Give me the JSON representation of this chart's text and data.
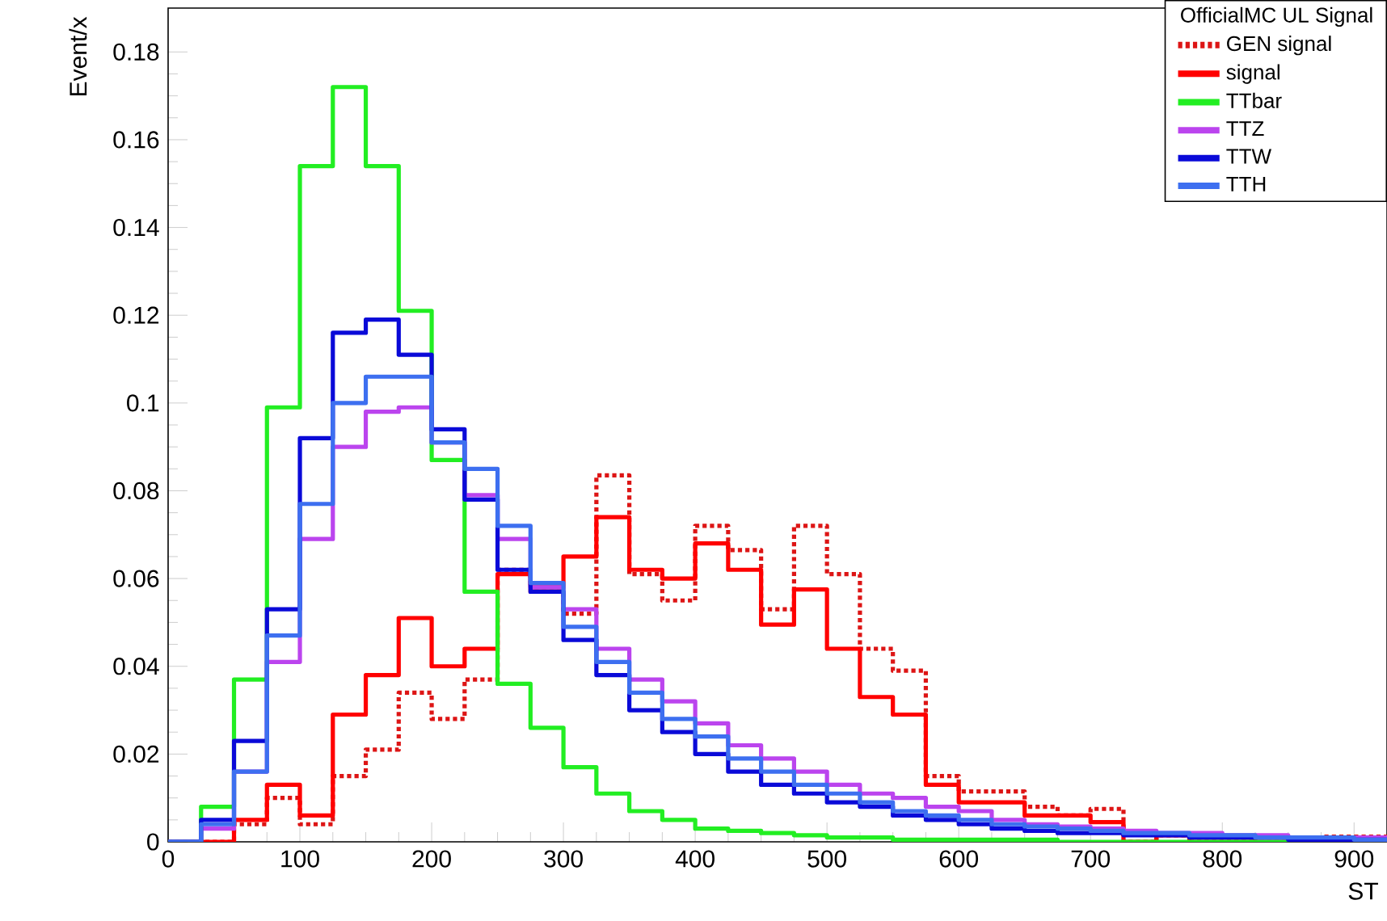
{
  "chart_data": {
    "type": "histogram",
    "xlabel": "ST",
    "ylabel": "Event/x",
    "legend_title": "OfficialMC UL Signal",
    "legend": "top right",
    "bins": [
      0,
      25,
      50,
      75,
      100,
      125,
      150,
      175,
      200,
      225,
      250,
      275,
      300,
      325,
      350,
      375,
      400,
      425,
      450,
      475,
      500,
      525,
      550,
      575,
      600,
      625,
      650,
      675,
      700,
      725,
      750,
      775,
      800,
      825,
      850,
      875,
      900,
      925
    ],
    "xlim": [
      0,
      925
    ],
    "xticks": [
      0,
      100,
      200,
      300,
      400,
      500,
      600,
      700,
      800,
      900
    ],
    "ylim": [
      0,
      0.19
    ],
    "yticks": [
      0,
      0.02,
      0.04,
      0.06,
      0.08,
      0.1,
      0.12,
      0.14,
      0.16,
      0.18
    ],
    "series": [
      {
        "name": "GEN signal",
        "color": "#dd1515",
        "line_style": "dotted",
        "values": [
          0,
          0,
          0.004,
          0.01,
          0.004,
          0.015,
          0.021,
          0.034,
          0.028,
          0.037,
          0.062,
          0.057,
          0.052,
          0.0835,
          0.061,
          0.055,
          0.072,
          0.0665,
          0.053,
          0.072,
          0.061,
          0.044,
          0.039,
          0.015,
          0.0115,
          0.0115,
          0.008,
          0.006,
          0.0075,
          0,
          0.0015,
          0,
          0,
          0.001,
          0,
          0.0012,
          0.0012
        ]
      },
      {
        "name": "signal",
        "color": "#ff0000",
        "values": [
          0,
          0,
          0.005,
          0.013,
          0.006,
          0.029,
          0.038,
          0.051,
          0.04,
          0.044,
          0.061,
          0.058,
          0.065,
          0.074,
          0.062,
          0.06,
          0.068,
          0.062,
          0.0495,
          0.0575,
          0.044,
          0.033,
          0.029,
          0.013,
          0.009,
          0.009,
          0.006,
          0.006,
          0.0045,
          0,
          0.0015,
          0,
          0,
          0,
          0,
          0,
          0
        ]
      },
      {
        "name": "TTbar",
        "color": "#22ee22",
        "values": [
          0,
          0.008,
          0.037,
          0.099,
          0.154,
          0.172,
          0.154,
          0.121,
          0.087,
          0.057,
          0.036,
          0.026,
          0.017,
          0.011,
          0.007,
          0.005,
          0.003,
          0.0025,
          0.002,
          0.0015,
          0.001,
          0.001,
          0.0005,
          0.0005,
          0.0005,
          0.0005,
          0.0005,
          0,
          0,
          0,
          0,
          0,
          0,
          0,
          0,
          0,
          0
        ]
      },
      {
        "name": "TTZ",
        "color": "#bb44ee",
        "values": [
          0,
          0.003,
          0.016,
          0.041,
          0.069,
          0.09,
          0.098,
          0.099,
          0.091,
          0.079,
          0.069,
          0.058,
          0.053,
          0.044,
          0.037,
          0.032,
          0.027,
          0.022,
          0.019,
          0.016,
          0.013,
          0.011,
          0.01,
          0.008,
          0.007,
          0.005,
          0.004,
          0.0035,
          0.003,
          0.0025,
          0.002,
          0.002,
          0.0015,
          0.0015,
          0.001,
          0.001,
          0.001
        ]
      },
      {
        "name": "TTW",
        "color": "#0a0ad8",
        "values": [
          0,
          0.005,
          0.023,
          0.053,
          0.092,
          0.116,
          0.119,
          0.111,
          0.094,
          0.078,
          0.062,
          0.057,
          0.046,
          0.038,
          0.03,
          0.025,
          0.02,
          0.016,
          0.013,
          0.011,
          0.009,
          0.008,
          0.006,
          0.005,
          0.004,
          0.003,
          0.0025,
          0.002,
          0.002,
          0.0015,
          0.0015,
          0.001,
          0.001,
          0.001,
          0.0005,
          0.0005,
          0.0005
        ]
      },
      {
        "name": "TTH",
        "color": "#3d6ff0",
        "values": [
          0,
          0.004,
          0.016,
          0.047,
          0.077,
          0.1,
          0.106,
          0.106,
          0.091,
          0.085,
          0.072,
          0.059,
          0.049,
          0.041,
          0.034,
          0.028,
          0.024,
          0.019,
          0.016,
          0.013,
          0.011,
          0.009,
          0.007,
          0.006,
          0.005,
          0.004,
          0.0035,
          0.003,
          0.0025,
          0.002,
          0.002,
          0.0015,
          0.0015,
          0.001,
          0.001,
          0.001,
          0.0005
        ]
      }
    ]
  }
}
